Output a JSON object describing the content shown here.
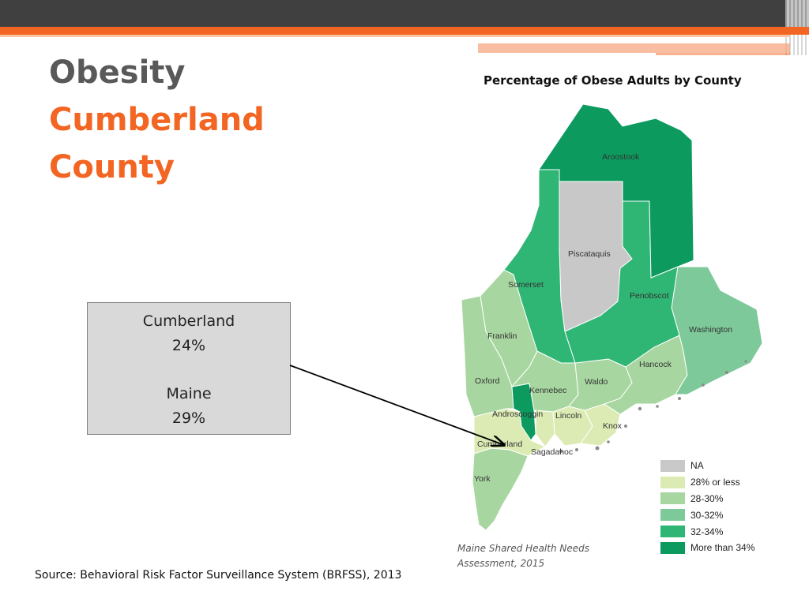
{
  "slide": {
    "title_line1": "Obesity",
    "title_line2": "Cumberland",
    "title_line3": "County"
  },
  "stats": {
    "county_name": "Cumberland",
    "county_value": "24%",
    "state_name": "Maine",
    "state_value": "29%"
  },
  "map": {
    "title": "Percentage of Obese Adults by County",
    "counties": [
      {
        "name": "Aroostook",
        "category": "More than 34%"
      },
      {
        "name": "Piscataquis",
        "category": "NA"
      },
      {
        "name": "Somerset",
        "category": "32-34%"
      },
      {
        "name": "Penobscot",
        "category": "32-34%"
      },
      {
        "name": "Washington",
        "category": "30-32%"
      },
      {
        "name": "Franklin",
        "category": "28-30%"
      },
      {
        "name": "Hancock",
        "category": "28-30%"
      },
      {
        "name": "Oxford",
        "category": "28-30%"
      },
      {
        "name": "Kennebec",
        "category": "28-30%"
      },
      {
        "name": "Waldo",
        "category": "28-30%"
      },
      {
        "name": "Androscoggin",
        "category": "More than 34%"
      },
      {
        "name": "Lincoln",
        "category": "28% or less"
      },
      {
        "name": "Knox",
        "category": "28% or less"
      },
      {
        "name": "Cumberland",
        "category": "28% or less"
      },
      {
        "name": "Sagadahoc",
        "category": "28% or less"
      },
      {
        "name": "York",
        "category": "28-30%"
      }
    ],
    "legend": [
      {
        "label": "NA",
        "color": "#c8c8c8"
      },
      {
        "label": "28% or less",
        "color": "#dcebb4"
      },
      {
        "label": "28-30%",
        "color": "#a8d6a0"
      },
      {
        "label": "30-32%",
        "color": "#7dc99a"
      },
      {
        "label": "32-34%",
        "color": "#2fb574"
      },
      {
        "label": "More than 34%",
        "color": "#0c9a5f"
      }
    ],
    "caption_line1": "Maine Shared Health Needs",
    "caption_line2": "Assessment, 2015"
  },
  "source": "Source: Behavioral Risk Factor Surveillance System (BRFSS), 2013"
}
